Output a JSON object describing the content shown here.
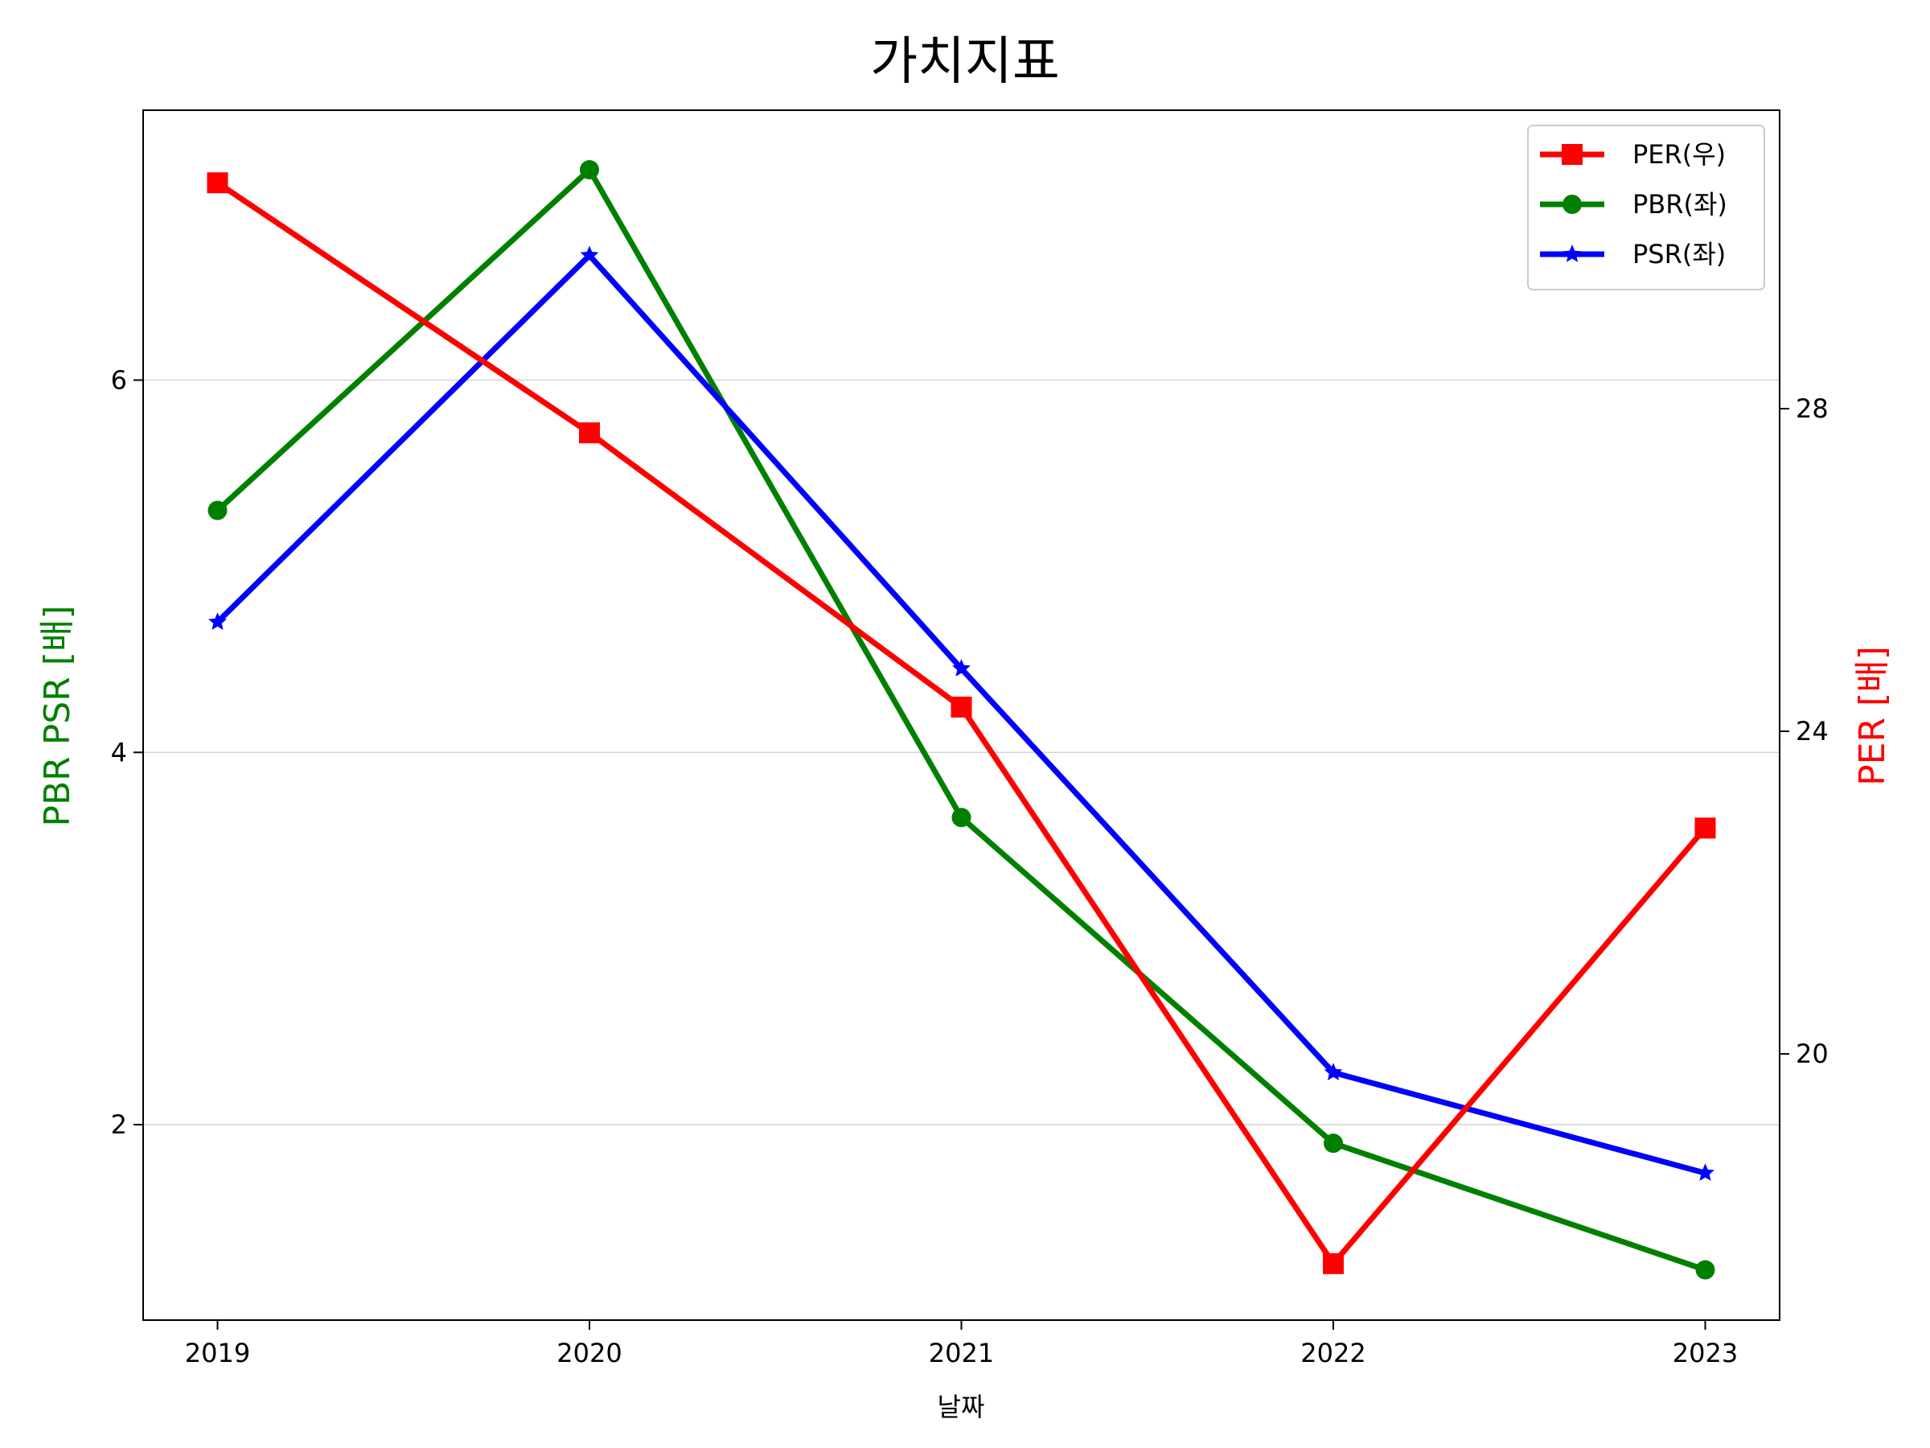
{
  "chart_data": {
    "type": "line",
    "title": "가치지표",
    "xlabel": "날짜",
    "ylabel_left": "PBR PSR [배]",
    "ylabel_right": "PER [배]",
    "categories": [
      "2019",
      "2020",
      "2021",
      "2022",
      "2023"
    ],
    "left_axis": {
      "ylim": [
        0.95,
        7.45
      ],
      "ticks": [
        2,
        4,
        6
      ],
      "color": "#008000"
    },
    "right_axis": {
      "ylim": [
        16.7,
        31.7
      ],
      "ticks": [
        20,
        24,
        28
      ],
      "color": "#ff0000"
    },
    "grid": "horizontal",
    "legend_placement": "top-right",
    "series": [
      {
        "name": "PER(우)",
        "axis": "right",
        "color": "#ff0000",
        "marker": "square",
        "values": [
          30.8,
          27.7,
          24.3,
          17.4,
          22.8
        ]
      },
      {
        "name": "PBR(좌)",
        "axis": "left",
        "color": "#008000",
        "marker": "circle",
        "values": [
          5.3,
          7.13,
          3.65,
          1.9,
          1.22
        ]
      },
      {
        "name": "PSR(좌)",
        "axis": "left",
        "color": "#0000ff",
        "marker": "star",
        "values": [
          4.7,
          6.67,
          4.45,
          2.28,
          1.74
        ]
      }
    ]
  }
}
